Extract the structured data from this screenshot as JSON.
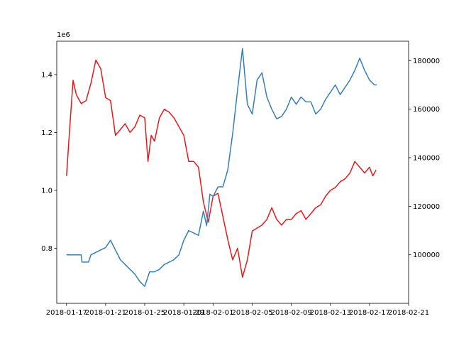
{
  "chart_data": {
    "type": "line",
    "title": "",
    "xlabel": "",
    "ylabel": "",
    "x_ticks": [
      "2018-01-17",
      "2018-01-21",
      "2018-01-25",
      "2018-01-29",
      "2018-02-01",
      "2018-02-05",
      "2018-02-09",
      "2018-02-13",
      "2018-02-17",
      "2018-02-21"
    ],
    "xlim": [
      "2018-01-16",
      "2018-02-21"
    ],
    "y_left": {
      "ticks": [
        "0.8",
        "1.0",
        "1.2",
        "1.4"
      ],
      "offset_text": "1e6",
      "ylim": [
        610000,
        1515000
      ]
    },
    "y_right": {
      "ticks": [
        "100000",
        "120000",
        "140000",
        "160000",
        "180000"
      ],
      "ylim": [
        80000,
        188000
      ]
    },
    "grid": false,
    "series": [
      {
        "axis": "left",
        "color": "#e41a1c",
        "points": [
          [
            "2018-01-17T00:00",
            1050000
          ],
          [
            "2018-01-17T08:00",
            1220000
          ],
          [
            "2018-01-17T16:00",
            1380000
          ],
          [
            "2018-01-18T00:00",
            1330000
          ],
          [
            "2018-01-18T12:00",
            1300000
          ],
          [
            "2018-01-19T00:00",
            1310000
          ],
          [
            "2018-01-19T12:00",
            1370000
          ],
          [
            "2018-01-20T00:00",
            1450000
          ],
          [
            "2018-01-20T12:00",
            1420000
          ],
          [
            "2018-01-21T00:00",
            1320000
          ],
          [
            "2018-01-21T12:00",
            1310000
          ],
          [
            "2018-01-22T00:00",
            1190000
          ],
          [
            "2018-01-22T12:00",
            1210000
          ],
          [
            "2018-01-23T00:00",
            1230000
          ],
          [
            "2018-01-23T12:00",
            1200000
          ],
          [
            "2018-01-24T00:00",
            1220000
          ],
          [
            "2018-01-24T12:00",
            1260000
          ],
          [
            "2018-01-25T00:00",
            1250000
          ],
          [
            "2018-01-25T08:00",
            1100000
          ],
          [
            "2018-01-25T16:00",
            1190000
          ],
          [
            "2018-01-26T00:00",
            1170000
          ],
          [
            "2018-01-26T12:00",
            1250000
          ],
          [
            "2018-01-27T00:00",
            1280000
          ],
          [
            "2018-01-27T12:00",
            1270000
          ],
          [
            "2018-01-28T00:00",
            1250000
          ],
          [
            "2018-01-28T12:00",
            1220000
          ],
          [
            "2018-01-29T00:00",
            1190000
          ],
          [
            "2018-01-29T12:00",
            1100000
          ],
          [
            "2018-01-30T00:00",
            1100000
          ],
          [
            "2018-01-30T12:00",
            1080000
          ],
          [
            "2018-01-31T00:00",
            960000
          ],
          [
            "2018-01-31T12:00",
            890000
          ],
          [
            "2018-02-01T00:00",
            980000
          ],
          [
            "2018-02-01T12:00",
            990000
          ],
          [
            "2018-02-02T00:00",
            910000
          ],
          [
            "2018-02-02T12:00",
            830000
          ],
          [
            "2018-02-03T00:00",
            760000
          ],
          [
            "2018-02-03T12:00",
            800000
          ],
          [
            "2018-02-04T00:00",
            700000
          ],
          [
            "2018-02-04T12:00",
            760000
          ],
          [
            "2018-02-05T00:00",
            860000
          ],
          [
            "2018-02-05T12:00",
            870000
          ],
          [
            "2018-02-06T00:00",
            880000
          ],
          [
            "2018-02-06T12:00",
            900000
          ],
          [
            "2018-02-07T00:00",
            940000
          ],
          [
            "2018-02-07T12:00",
            900000
          ],
          [
            "2018-02-08T00:00",
            880000
          ],
          [
            "2018-02-08T12:00",
            900000
          ],
          [
            "2018-02-09T00:00",
            900000
          ],
          [
            "2018-02-09T12:00",
            920000
          ],
          [
            "2018-02-10T00:00",
            930000
          ],
          [
            "2018-02-10T12:00",
            900000
          ],
          [
            "2018-02-11T00:00",
            920000
          ],
          [
            "2018-02-11T12:00",
            940000
          ],
          [
            "2018-02-12T00:00",
            950000
          ],
          [
            "2018-02-12T12:00",
            980000
          ],
          [
            "2018-02-13T00:00",
            1000000
          ],
          [
            "2018-02-13T12:00",
            1010000
          ],
          [
            "2018-02-14T00:00",
            1030000
          ],
          [
            "2018-02-14T12:00",
            1040000
          ],
          [
            "2018-02-15T00:00",
            1060000
          ],
          [
            "2018-02-15T12:00",
            1100000
          ],
          [
            "2018-02-16T00:00",
            1080000
          ],
          [
            "2018-02-16T12:00",
            1060000
          ],
          [
            "2018-02-17T00:00",
            1080000
          ],
          [
            "2018-02-17T08:00",
            1050000
          ],
          [
            "2018-02-17T16:00",
            1070000
          ]
        ]
      },
      {
        "axis": "right",
        "color": "#377eb8",
        "points": [
          [
            "2018-01-17T00:00",
            100000
          ],
          [
            "2018-01-18T12:00",
            100000
          ],
          [
            "2018-01-18T14:00",
            97000
          ],
          [
            "2018-01-19T06:00",
            97000
          ],
          [
            "2018-01-19T12:00",
            100000
          ],
          [
            "2018-01-20T12:00",
            102000
          ],
          [
            "2018-01-21T00:00",
            103000
          ],
          [
            "2018-01-21T12:00",
            106000
          ],
          [
            "2018-01-22T00:00",
            102000
          ],
          [
            "2018-01-22T12:00",
            98000
          ],
          [
            "2018-01-23T00:00",
            96000
          ],
          [
            "2018-01-23T12:00",
            94000
          ],
          [
            "2018-01-24T00:00",
            92000
          ],
          [
            "2018-01-24T12:00",
            89000
          ],
          [
            "2018-01-25T00:00",
            87000
          ],
          [
            "2018-01-25T12:00",
            93000
          ],
          [
            "2018-01-26T00:00",
            93000
          ],
          [
            "2018-01-26T12:00",
            94000
          ],
          [
            "2018-01-27T00:00",
            96000
          ],
          [
            "2018-01-27T12:00",
            97000
          ],
          [
            "2018-01-28T00:00",
            98000
          ],
          [
            "2018-01-28T12:00",
            100000
          ],
          [
            "2018-01-29T00:00",
            106000
          ],
          [
            "2018-01-29T12:00",
            110000
          ],
          [
            "2018-01-30T12:00",
            108000
          ],
          [
            "2018-01-31T00:00",
            118000
          ],
          [
            "2018-01-31T08:00",
            112000
          ],
          [
            "2018-01-31T16:00",
            125000
          ],
          [
            "2018-02-01T00:00",
            124000
          ],
          [
            "2018-02-01T12:00",
            128000
          ],
          [
            "2018-02-02T00:00",
            128000
          ],
          [
            "2018-02-02T12:00",
            135000
          ],
          [
            "2018-02-03T00:00",
            150000
          ],
          [
            "2018-02-03T12:00",
            168000
          ],
          [
            "2018-02-04T00:00",
            185000
          ],
          [
            "2018-02-04T12:00",
            162000
          ],
          [
            "2018-02-05T00:00",
            158000
          ],
          [
            "2018-02-05T12:00",
            172000
          ],
          [
            "2018-02-06T00:00",
            175000
          ],
          [
            "2018-02-06T12:00",
            165000
          ],
          [
            "2018-02-07T00:00",
            160000
          ],
          [
            "2018-02-07T12:00",
            156000
          ],
          [
            "2018-02-08T00:00",
            157000
          ],
          [
            "2018-02-08T12:00",
            160000
          ],
          [
            "2018-02-09T00:00",
            165000
          ],
          [
            "2018-02-09T12:00",
            162000
          ],
          [
            "2018-02-10T00:00",
            165000
          ],
          [
            "2018-02-10T12:00",
            163000
          ],
          [
            "2018-02-11T00:00",
            163000
          ],
          [
            "2018-02-11T12:00",
            158000
          ],
          [
            "2018-02-12T00:00",
            160000
          ],
          [
            "2018-02-12T12:00",
            164000
          ],
          [
            "2018-02-13T00:00",
            167000
          ],
          [
            "2018-02-13T12:00",
            170000
          ],
          [
            "2018-02-14T00:00",
            166000
          ],
          [
            "2018-02-14T12:00",
            169000
          ],
          [
            "2018-02-15T00:00",
            172000
          ],
          [
            "2018-02-15T12:00",
            176000
          ],
          [
            "2018-02-16T00:00",
            181000
          ],
          [
            "2018-02-16T12:00",
            176000
          ],
          [
            "2018-02-17T00:00",
            172000
          ],
          [
            "2018-02-17T12:00",
            170000
          ],
          [
            "2018-02-17T18:00",
            170000
          ]
        ]
      }
    ]
  }
}
